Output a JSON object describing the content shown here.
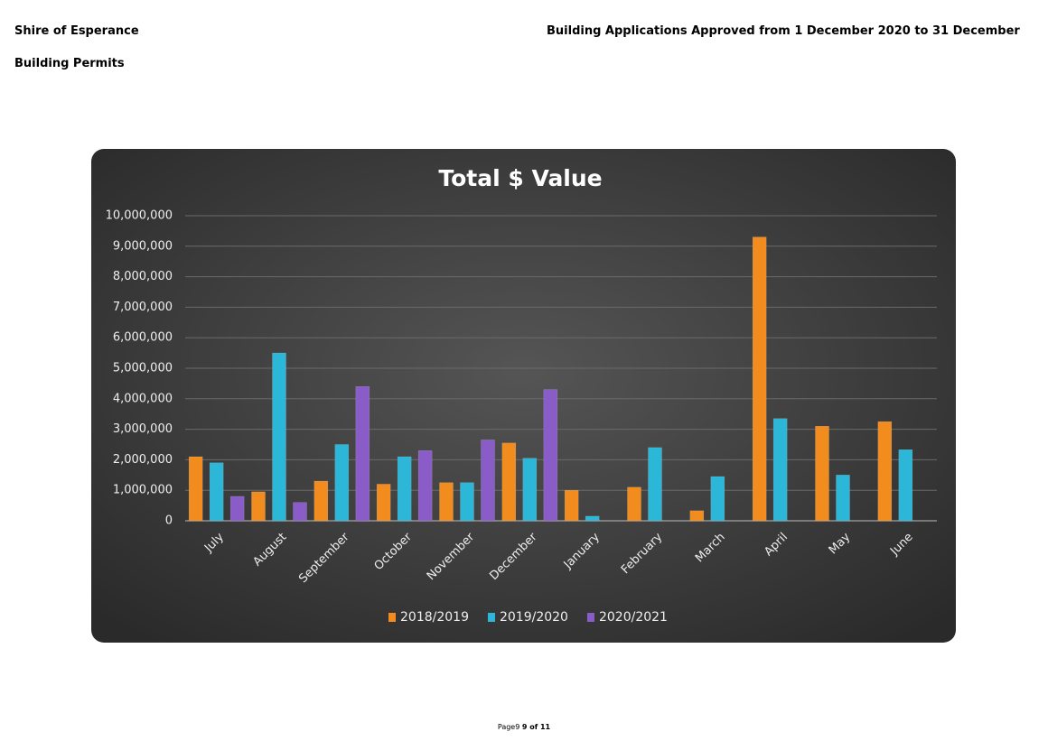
{
  "header": {
    "organisation": "Shire of Esperance",
    "report": "Building Applications Approved from 1 December 2020 to 31 December",
    "section": "Building Permits"
  },
  "chart_data": {
    "type": "bar",
    "title": "Total $ Value",
    "categories": [
      "July",
      "August",
      "September",
      "October",
      "November",
      "December",
      "January",
      "February",
      "March",
      "April",
      "May",
      "June"
    ],
    "series": [
      {
        "name": "2018/2019",
        "color": "#f28c1e",
        "values": [
          2100000,
          950000,
          1300000,
          1200000,
          1250000,
          2550000,
          1000000,
          1100000,
          330000,
          9300000,
          3100000,
          3250000
        ]
      },
      {
        "name": "2019/2020",
        "color": "#2cb6d8",
        "values": [
          1900000,
          5500000,
          2500000,
          2100000,
          1250000,
          2050000,
          150000,
          2400000,
          1450000,
          3350000,
          1500000,
          2330000
        ]
      },
      {
        "name": "2020/2021",
        "color": "#8a5cc8",
        "values": [
          800000,
          600000,
          4400000,
          2300000,
          2650000,
          4300000,
          null,
          null,
          null,
          null,
          null,
          null
        ]
      }
    ],
    "ylim": [
      0,
      10000000
    ],
    "yticks": [
      0,
      {
        "value": 1000000,
        "label": "1,000,000"
      },
      {
        "value": 2000000,
        "label": "2,000,000"
      },
      {
        "value": 3000000,
        "label": "3,000,000"
      },
      {
        "value": 4000000,
        "label": "4,000,000"
      },
      {
        "value": 5000000,
        "label": "5,000,000"
      },
      {
        "value": 6000000,
        "label": "6,000,000"
      },
      {
        "value": 7000000,
        "label": "7,000,000"
      },
      {
        "value": 8000000,
        "label": "8,000,000"
      },
      {
        "value": 9000000,
        "label": "9,000,000"
      },
      {
        "value": 10000000,
        "label": "10,000,000"
      }
    ],
    "grid": true,
    "legend": "bottom"
  },
  "footer": {
    "label": "Page9",
    "page": "9 of 11"
  }
}
